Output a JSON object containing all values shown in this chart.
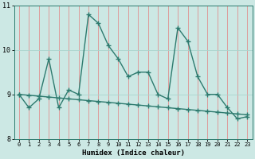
{
  "x": [
    0,
    1,
    2,
    3,
    4,
    5,
    6,
    7,
    8,
    9,
    10,
    11,
    12,
    13,
    14,
    15,
    16,
    17,
    18,
    19,
    20,
    21,
    22,
    23
  ],
  "y_main": [
    9.0,
    8.7,
    8.9,
    9.8,
    8.7,
    9.1,
    9.0,
    10.8,
    10.6,
    10.1,
    9.8,
    9.4,
    9.5,
    9.5,
    9.0,
    8.9,
    10.5,
    10.2,
    9.4,
    9.0,
    9.0,
    8.7,
    8.45,
    8.5
  ],
  "y_trend": [
    9.0,
    8.98,
    8.96,
    8.94,
    8.92,
    8.9,
    8.88,
    8.86,
    8.84,
    8.82,
    8.8,
    8.78,
    8.76,
    8.74,
    8.72,
    8.7,
    8.68,
    8.66,
    8.64,
    8.62,
    8.6,
    8.58,
    8.56,
    8.54
  ],
  "line_color": "#2d7a6e",
  "bg_color": "#cce8e4",
  "hgrid_color": "#aad4ce",
  "vgrid_color": "#e09090",
  "xlabel": "Humidex (Indice chaleur)",
  "xlim": [
    -0.5,
    23.5
  ],
  "ylim": [
    8.0,
    11.0
  ],
  "yticks": [
    8,
    9,
    10,
    11
  ],
  "xticks": [
    0,
    1,
    2,
    3,
    4,
    5,
    6,
    7,
    8,
    9,
    10,
    11,
    12,
    13,
    14,
    15,
    16,
    17,
    18,
    19,
    20,
    21,
    22,
    23
  ],
  "marker": "+",
  "markersize": 4,
  "linewidth": 1.0,
  "trend_linewidth": 1.0
}
